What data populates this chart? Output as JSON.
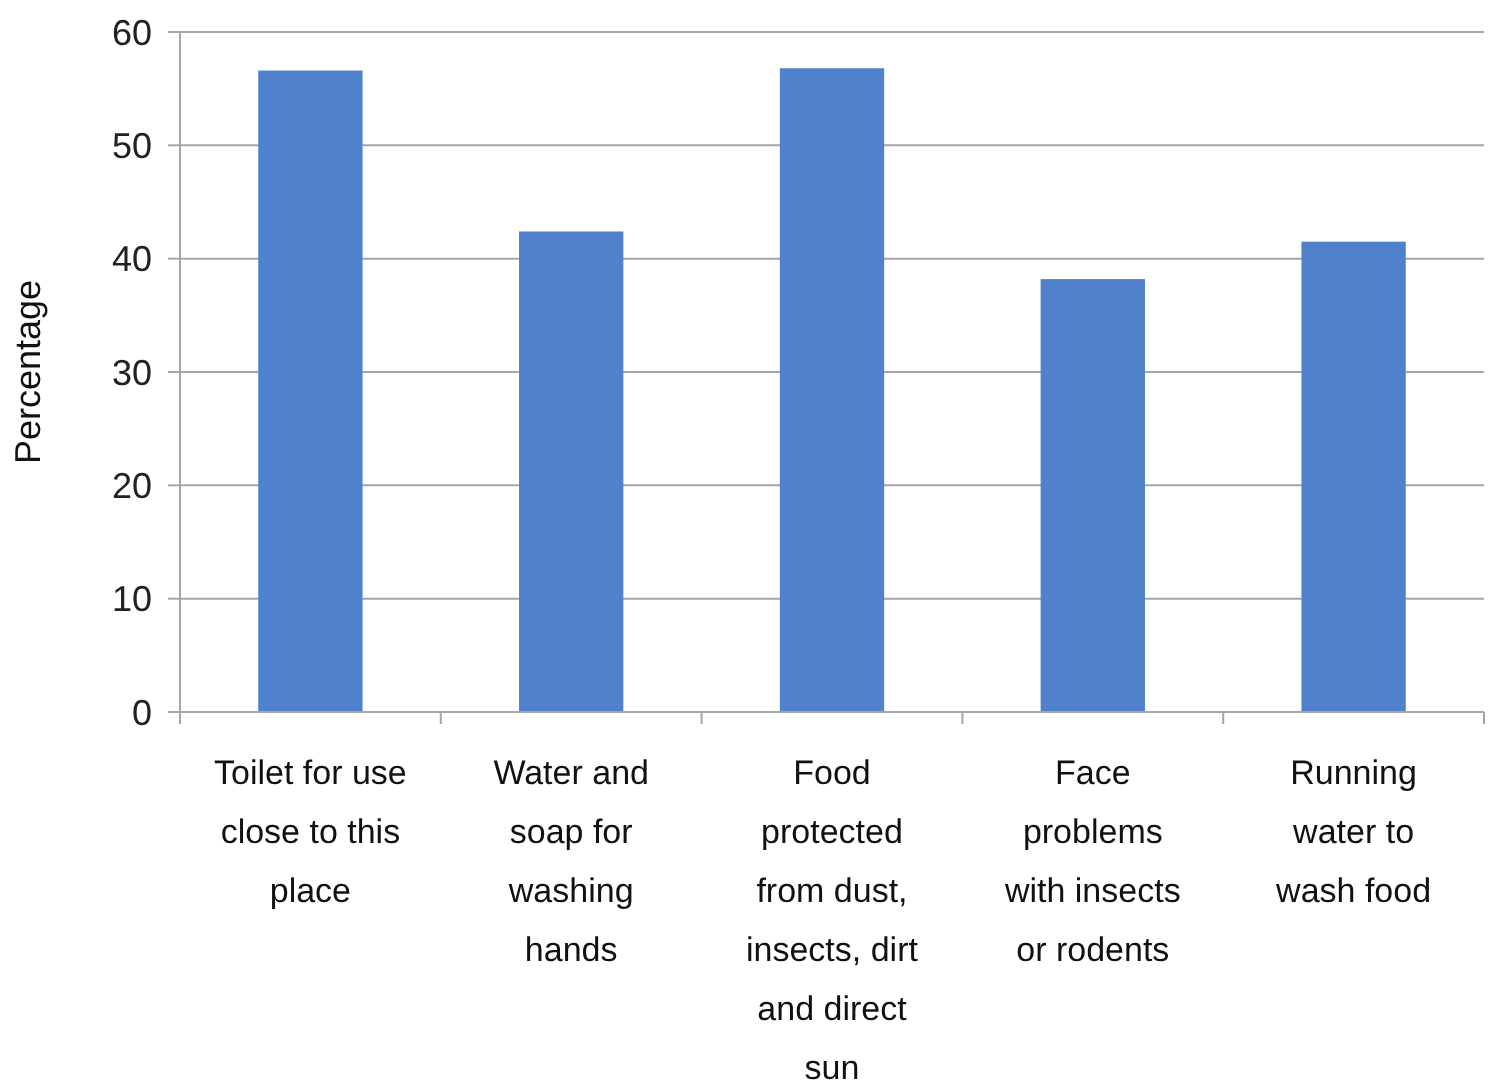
{
  "chart_data": {
    "type": "bar",
    "ylabel": "Percentage",
    "categories": [
      "Toilet for use close to this place",
      "Water and soap for washing hands",
      "Food protected from dust, insects, dirt and direct sun",
      "Face problems with insects or rodents",
      "Running water to wash food"
    ],
    "values": [
      56.6,
      42.4,
      56.8,
      38.2,
      41.5
    ],
    "color": "#4f81cd",
    "ylim": [
      0,
      60
    ],
    "yticks": [
      0,
      10,
      20,
      30,
      40,
      50,
      60
    ],
    "grid": "y"
  }
}
